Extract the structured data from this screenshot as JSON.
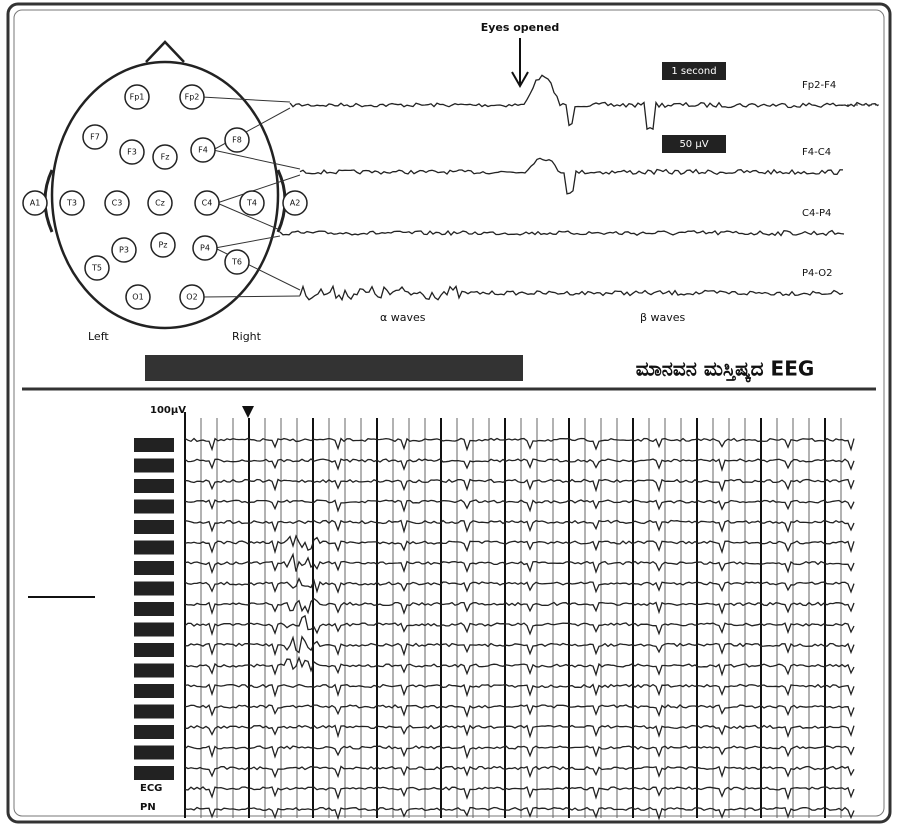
{
  "top_panel": {
    "annotation": "Eyes opened",
    "time_scale": "1 second",
    "amplitude_scale": "50 µV",
    "channels": [
      "Fp2-F4",
      "F4-C4",
      "C4-P4",
      "P4-O2"
    ],
    "electrodes": [
      "Fp1",
      "Fp2",
      "F7",
      "F3",
      "Fz",
      "F4",
      "F8",
      "A1",
      "T3",
      "C3",
      "Cz",
      "C4",
      "T4",
      "A2",
      "T5",
      "P3",
      "Pz",
      "P4",
      "T6",
      "O1",
      "O2"
    ],
    "side_labels": [
      "Left",
      "Right"
    ],
    "wave_labels": [
      "α waves",
      "β waves"
    ]
  },
  "title": "ಮಾನವನ ಮಸ್ತಿಷ್ಕದ EEG",
  "bottom_panel": {
    "scale_label": "100µV",
    "lower_labels": [
      "ECG",
      "PN"
    ]
  }
}
